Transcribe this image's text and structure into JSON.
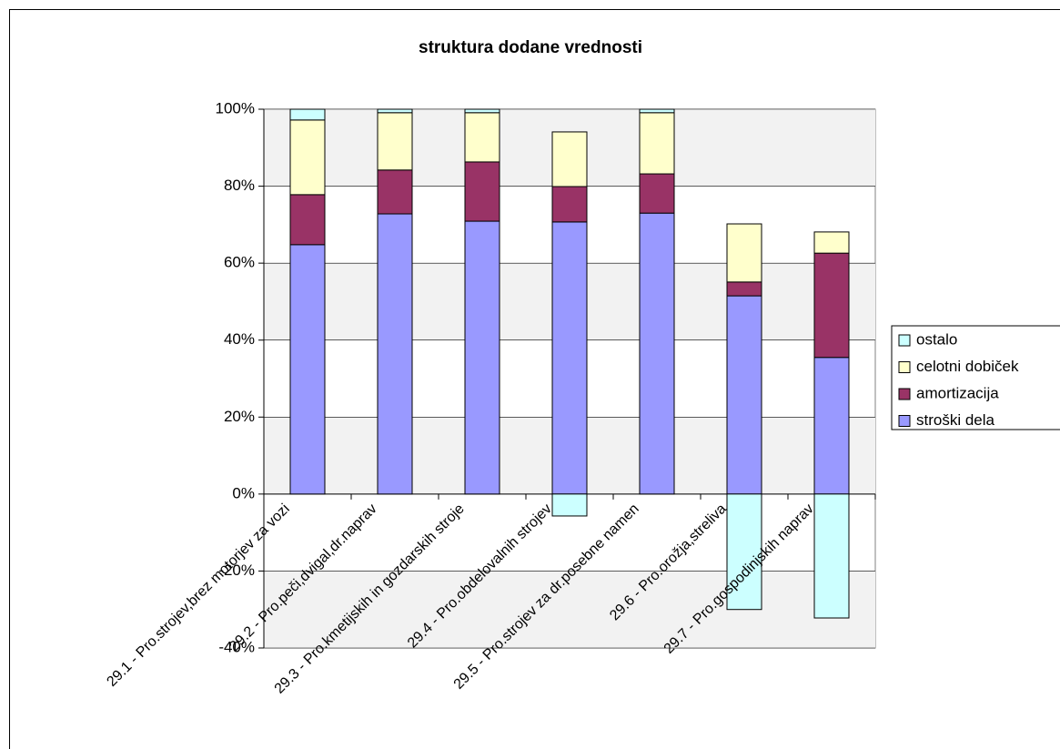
{
  "chart_data": {
    "type": "bar",
    "stacked": true,
    "title": "struktura dodane vrednosti",
    "categories": [
      "29.1 - Pro.strojev,brez motorjev za vozi",
      "29.2 - Pro.peči,dvigal,dr.naprav",
      "29.3 - Pro.kmetijskih in gozdarskih stroje",
      "29.4 - Pro.obdelovalnih strojev",
      "29.5 - Pro.strojev za dr.posebne namen",
      "29.6 - Pro.orožja,streliva",
      "29.7 - Pro.gospodinjskih naprav"
    ],
    "series": [
      {
        "name": "stroški dela",
        "color": "#9999ff",
        "values": [
          64.8,
          72.8,
          70.9,
          70.7,
          73.0,
          51.5,
          35.5
        ]
      },
      {
        "name": "amortizacija",
        "color": "#993366",
        "values": [
          13.0,
          11.4,
          15.4,
          9.2,
          10.2,
          3.6,
          27.1
        ]
      },
      {
        "name": "celotni dobiček",
        "color": "#ffffcc",
        "values": [
          19.4,
          14.9,
          12.8,
          14.2,
          15.9,
          15.1,
          5.5
        ]
      },
      {
        "name": "ostalo",
        "color": "#ccffff",
        "values": [
          2.8,
          0.9,
          0.9,
          -5.7,
          0.9,
          -30.0,
          -32.2
        ]
      }
    ],
    "ylim": [
      -40,
      100
    ],
    "yticks": [
      {
        "value": -40,
        "label": "-40%"
      },
      {
        "value": -20,
        "label": "-20%"
      },
      {
        "value": 0,
        "label": "0%"
      },
      {
        "value": 20,
        "label": "20%"
      },
      {
        "value": 40,
        "label": "40%"
      },
      {
        "value": 60,
        "label": "60%"
      },
      {
        "value": 80,
        "label": "80%"
      },
      {
        "value": 100,
        "label": "100%"
      }
    ],
    "grid": true,
    "legend": "right"
  }
}
